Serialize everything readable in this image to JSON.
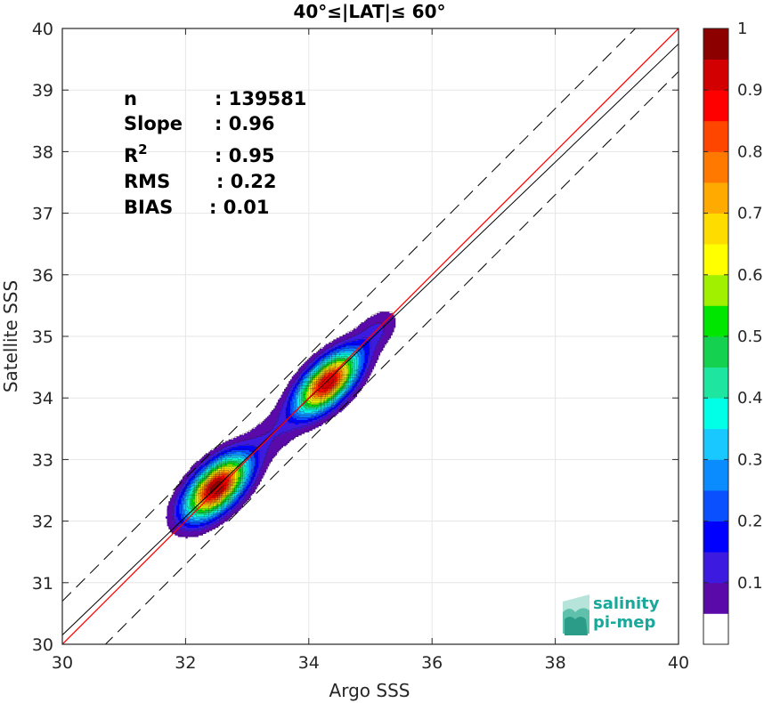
{
  "chart_data": {
    "type": "contour",
    "title": "40°≤|LAT|≤ 60°",
    "xlabel": "Argo SSS",
    "ylabel": "Satellite SSS",
    "xlim": [
      30,
      40
    ],
    "ylim": [
      30,
      40
    ],
    "xticks": [
      "30",
      "32",
      "34",
      "36",
      "38",
      "40"
    ],
    "yticks": [
      "30",
      "31",
      "32",
      "33",
      "34",
      "35",
      "36",
      "37",
      "38",
      "39",
      "40"
    ],
    "grid": true,
    "stats": [
      {
        "label": "n",
        "value": ": 139581"
      },
      {
        "label": "Slope",
        "value": ": 0.96"
      },
      {
        "label": "R",
        "sup": "2",
        "value": ": 0.95"
      },
      {
        "label": "RMS",
        "value": ": 0.22"
      },
      {
        "label": "BIAS",
        "value": ": 0.01"
      }
    ],
    "lines": {
      "identity": {
        "x": [
          30,
          40
        ],
        "y": [
          30,
          40
        ],
        "color": "#ff0000"
      },
      "fit": {
        "x": [
          30,
          40
        ],
        "y": [
          30.15,
          39.75
        ],
        "color": "#000000"
      },
      "upper_bound": {
        "x": [
          30,
          40
        ],
        "y": [
          30.7,
          40.7
        ],
        "color": "#000000",
        "dash": true
      },
      "lower_bound": {
        "x": [
          30,
          40
        ],
        "y": [
          29.3,
          39.3
        ],
        "color": "#000000",
        "dash": true
      }
    },
    "density_peaks": [
      {
        "x": 32.5,
        "y": 32.55,
        "sigma_along": 0.42,
        "sigma_cross": 0.21,
        "amplitude": 1.0
      },
      {
        "x": 34.3,
        "y": 34.25,
        "sigma_along": 0.42,
        "sigma_cross": 0.2,
        "amplitude": 0.95
      },
      {
        "x": 33.4,
        "y": 33.4,
        "sigma_along": 0.35,
        "sigma_cross": 0.22,
        "amplitude": 0.08
      },
      {
        "x": 35.1,
        "y": 35.1,
        "sigma_along": 0.3,
        "sigma_cross": 0.18,
        "amplitude": 0.1
      }
    ],
    "contour_levels": [
      0.05,
      0.1,
      0.15,
      0.2,
      0.25,
      0.3,
      0.35,
      0.4,
      0.45,
      0.5,
      0.55,
      0.6,
      0.65,
      0.7,
      0.75,
      0.8,
      0.85,
      0.9,
      0.95,
      1.0
    ],
    "colorbar": {
      "min": 0,
      "max": 1,
      "ticks": [
        "0.1",
        "0.2",
        "0.3",
        "0.4",
        "0.5",
        "0.6",
        "0.7",
        "0.8",
        "0.9",
        "1"
      ],
      "tick_values": [
        0.1,
        0.2,
        0.3,
        0.4,
        0.5,
        0.6,
        0.7,
        0.8,
        0.9,
        1.0
      ],
      "colors": [
        "#ffffff",
        "#5a0aa8",
        "#3c1ae0",
        "#0000ff",
        "#0a50ff",
        "#0a8cff",
        "#19c8ff",
        "#00ffe6",
        "#1ee6a0",
        "#14d250",
        "#00e600",
        "#a0f000",
        "#ffff00",
        "#ffdc00",
        "#ffaa00",
        "#ff7800",
        "#ff4600",
        "#ff0000",
        "#d20000",
        "#8c0000"
      ]
    }
  },
  "logo": {
    "line1": "salinity",
    "line2": "pi-mep"
  }
}
